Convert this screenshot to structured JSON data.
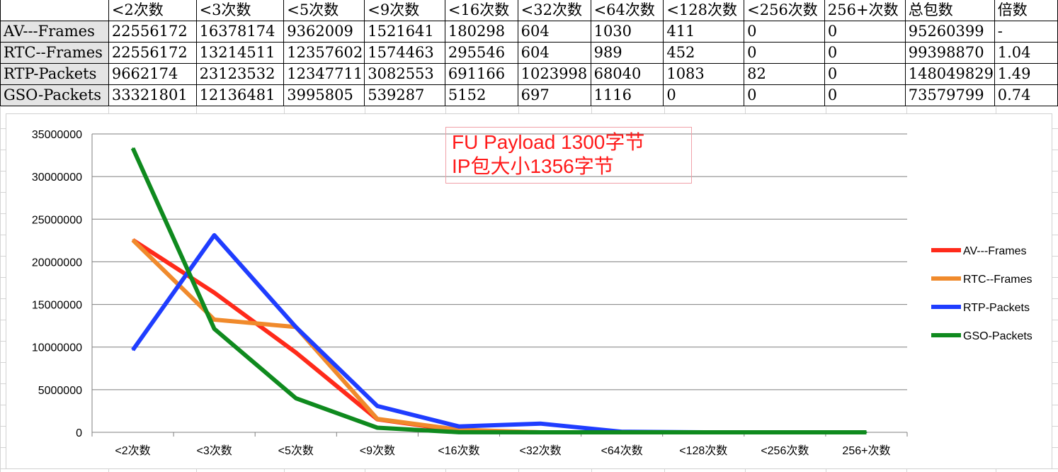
{
  "table": {
    "headers": [
      "",
      "<2次数",
      "<3次数",
      "<5次数",
      "<9次数",
      "<16次数",
      "<32次数",
      "<64次数",
      "<128次数",
      "<256次数",
      "256+次数",
      "总包数",
      "倍数"
    ],
    "rows": [
      [
        "AV---Frames",
        "22556172",
        "16378174",
        "9362009",
        "1521641",
        "180298",
        "604",
        "1030",
        "411",
        "0",
        "0",
        "95260399",
        "-"
      ],
      [
        "RTC--Frames",
        "22556172",
        "13214511",
        "12357602",
        "1574463",
        "295546",
        "604",
        "989",
        "452",
        "0",
        "0",
        "99398870",
        "1.04"
      ],
      [
        "RTP-Packets",
        "9662174",
        "23123532",
        "12347711",
        "3082553",
        "691166",
        "1023998",
        "68040",
        "1083",
        "82",
        "0",
        "148049829",
        "1.49"
      ],
      [
        "GSO-Packets",
        "33321801",
        "12136481",
        "3995805",
        "539287",
        "5152",
        "697",
        "1116",
        "0",
        "0",
        "0",
        "73579799",
        "0.74"
      ]
    ]
  },
  "annotation": {
    "line1": "FU Payload 1300字节",
    "line2": "IP包大小1356字节"
  },
  "chart_data": {
    "type": "line",
    "categories": [
      "<2次数",
      "<3次数",
      "<5次数",
      "<9次数",
      "<16次数",
      "<32次数",
      "<64次数",
      "<128次数",
      "<256次数",
      "256+次数"
    ],
    "ylim": [
      0,
      35000000
    ],
    "yticks": [
      0,
      5000000,
      10000000,
      15000000,
      20000000,
      25000000,
      30000000,
      35000000
    ],
    "grid": true,
    "legend_position": "right",
    "series": [
      {
        "name": "AV---Frames",
        "color": "#ff2a1a",
        "values": [
          22556172,
          16378174,
          9362009,
          1521641,
          180298,
          604,
          1030,
          411,
          0,
          0
        ]
      },
      {
        "name": "RTC--Frames",
        "color": "#f08a2c",
        "values": [
          22556172,
          13214511,
          12357602,
          1574463,
          295546,
          604,
          989,
          452,
          0,
          0
        ]
      },
      {
        "name": "RTP-Packets",
        "color": "#1f3dff",
        "values": [
          9662174,
          23123532,
          12347711,
          3082553,
          691166,
          1023998,
          68040,
          1083,
          82,
          0
        ]
      },
      {
        "name": "GSO-Packets",
        "color": "#0f8a1e",
        "values": [
          33321801,
          12136481,
          3995805,
          539287,
          5152,
          697,
          1116,
          0,
          0,
          0
        ]
      }
    ]
  }
}
